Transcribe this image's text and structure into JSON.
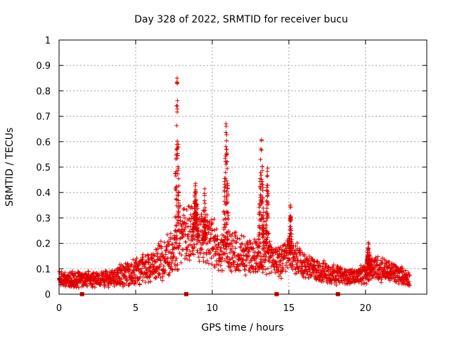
{
  "chart_data": {
    "type": "scatter",
    "title": "Day 328 of 2022, SRMTID for receiver bucu",
    "xlabel": "GPS time / hours",
    "ylabel": "SRMTID / TECUs",
    "xlim": [
      0,
      24
    ],
    "ylim": [
      0,
      1
    ],
    "xticks": [
      0,
      5,
      10,
      15,
      20
    ],
    "yticks": [
      0,
      0.1,
      0.2,
      0.3,
      0.4,
      0.5,
      0.6,
      0.7,
      0.8,
      0.9,
      1
    ],
    "xtick_labels": [
      "0",
      "5",
      "10",
      "15",
      "20"
    ],
    "ytick_labels": [
      "0",
      "0.1",
      "0.2",
      "0.3",
      "0.4",
      "0.5",
      "0.6",
      "0.7",
      "0.8",
      "0.9",
      "1"
    ],
    "grid": true,
    "marker": "+",
    "color": "#e00000",
    "envelope": {
      "description": "dense cloud of SRMTID samples; base level and spread vs time",
      "hours": [
        0.0,
        1.0,
        2.0,
        3.0,
        4.0,
        5.0,
        6.0,
        6.8,
        7.5,
        8.0,
        8.5,
        9.0,
        9.5,
        10.0,
        10.5,
        11.0,
        11.5,
        12.0,
        12.5,
        13.0,
        13.5,
        14.0,
        14.5,
        15.0,
        15.5,
        16.0,
        17.0,
        18.0,
        18.5,
        19.0,
        19.5,
        20.0,
        20.5,
        21.0,
        21.5,
        22.0,
        22.5,
        22.9
      ],
      "base": [
        0.06,
        0.06,
        0.06,
        0.06,
        0.07,
        0.09,
        0.11,
        0.14,
        0.18,
        0.22,
        0.24,
        0.25,
        0.22,
        0.2,
        0.17,
        0.18,
        0.16,
        0.16,
        0.15,
        0.16,
        0.16,
        0.14,
        0.13,
        0.16,
        0.14,
        0.11,
        0.09,
        0.08,
        0.07,
        0.07,
        0.07,
        0.08,
        0.11,
        0.1,
        0.09,
        0.08,
        0.07,
        0.06
      ],
      "spread": [
        0.03,
        0.03,
        0.03,
        0.03,
        0.04,
        0.05,
        0.06,
        0.08,
        0.1,
        0.12,
        0.13,
        0.12,
        0.1,
        0.09,
        0.08,
        0.09,
        0.08,
        0.08,
        0.07,
        0.08,
        0.08,
        0.06,
        0.06,
        0.07,
        0.06,
        0.05,
        0.04,
        0.04,
        0.03,
        0.03,
        0.03,
        0.04,
        0.05,
        0.05,
        0.04,
        0.04,
        0.03,
        0.03
      ]
    },
    "peaks": [
      {
        "hour": 7.7,
        "max": 0.9,
        "width": 0.25
      },
      {
        "hour": 8.9,
        "max": 0.45,
        "width": 0.35
      },
      {
        "hour": 9.5,
        "max": 0.42,
        "width": 0.2
      },
      {
        "hour": 10.9,
        "max": 0.72,
        "width": 0.3
      },
      {
        "hour": 13.2,
        "max": 0.64,
        "width": 0.35
      },
      {
        "hour": 13.6,
        "max": 0.55,
        "width": 0.2
      },
      {
        "hour": 15.1,
        "max": 0.37,
        "width": 0.2
      },
      {
        "hour": 20.2,
        "max": 0.22,
        "width": 0.3
      }
    ],
    "gaps_hours": [
      1.5,
      8.3,
      14.2,
      18.2
    ]
  }
}
